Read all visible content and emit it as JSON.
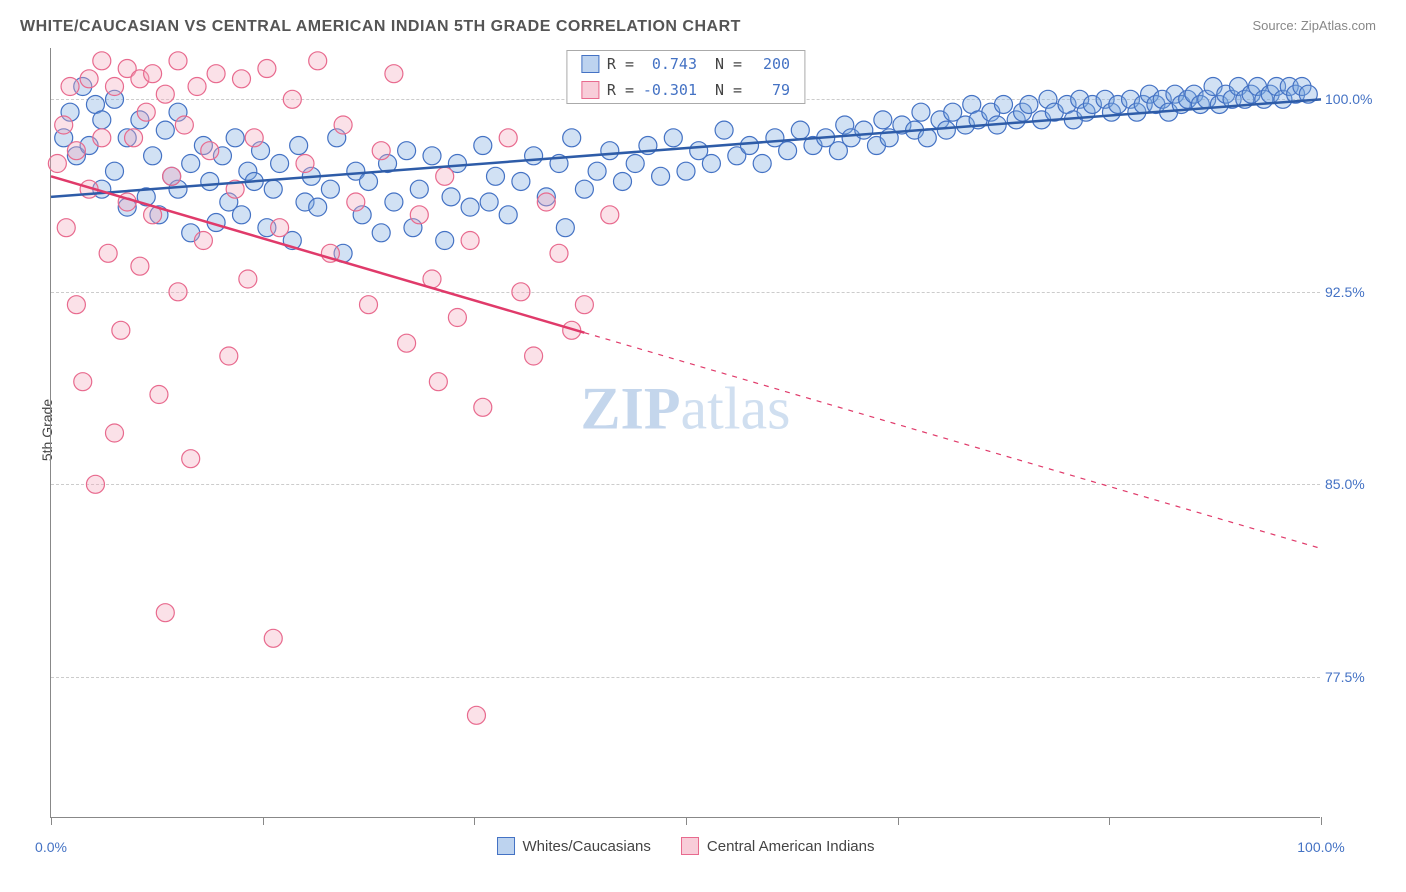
{
  "title": "WHITE/CAUCASIAN VS CENTRAL AMERICAN INDIAN 5TH GRADE CORRELATION CHART",
  "source": "Source: ZipAtlas.com",
  "ylabel": "5th Grade",
  "watermark_zip": "ZIP",
  "watermark_atlas": "atlas",
  "chart": {
    "type": "scatter",
    "background_color": "#ffffff",
    "grid_color": "#cccccc",
    "axis_color": "#888888",
    "xlim": [
      0,
      100
    ],
    "ylim": [
      72,
      102
    ],
    "xtick_positions": [
      0,
      16.67,
      33.33,
      50,
      66.67,
      83.33,
      100
    ],
    "xtick_labels": {
      "0": "0.0%",
      "100": "100.0%"
    },
    "ytick_positions": [
      77.5,
      85.0,
      92.5,
      100.0
    ],
    "ytick_labels": [
      "77.5%",
      "85.0%",
      "92.5%",
      "100.0%"
    ],
    "marker_radius": 9,
    "marker_opacity": 0.35,
    "line_width": 2.5,
    "series": [
      {
        "name": "Whites/Caucasians",
        "fill_color": "#7aa8e0",
        "stroke_color": "#4472c4",
        "line_color": "#2e5ca8",
        "R": "0.743",
        "N": "200",
        "trend": {
          "x1": 0,
          "y1": 96.2,
          "x2": 100,
          "y2": 100.0,
          "dash_from_x": null
        },
        "points": [
          [
            1,
            98.5
          ],
          [
            1.5,
            99.5
          ],
          [
            2,
            97.8
          ],
          [
            2.5,
            100.5
          ],
          [
            3,
            98.2
          ],
          [
            3.5,
            99.8
          ],
          [
            4,
            96.5
          ],
          [
            4,
            99.2
          ],
          [
            5,
            97.2
          ],
          [
            5,
            100.0
          ],
          [
            6,
            95.8
          ],
          [
            6,
            98.5
          ],
          [
            7,
            99.2
          ],
          [
            7.5,
            96.2
          ],
          [
            8,
            97.8
          ],
          [
            8.5,
            95.5
          ],
          [
            9,
            98.8
          ],
          [
            9.5,
            97.0
          ],
          [
            10,
            96.5
          ],
          [
            10,
            99.5
          ],
          [
            11,
            94.8
          ],
          [
            11,
            97.5
          ],
          [
            12,
            98.2
          ],
          [
            12.5,
            96.8
          ],
          [
            13,
            95.2
          ],
          [
            13.5,
            97.8
          ],
          [
            14,
            96.0
          ],
          [
            14.5,
            98.5
          ],
          [
            15,
            95.5
          ],
          [
            15.5,
            97.2
          ],
          [
            16,
            96.8
          ],
          [
            16.5,
            98.0
          ],
          [
            17,
            95.0
          ],
          [
            17.5,
            96.5
          ],
          [
            18,
            97.5
          ],
          [
            19,
            94.5
          ],
          [
            19.5,
            98.2
          ],
          [
            20,
            96.0
          ],
          [
            20.5,
            97.0
          ],
          [
            21,
            95.8
          ],
          [
            22,
            96.5
          ],
          [
            22.5,
            98.5
          ],
          [
            23,
            94.0
          ],
          [
            24,
            97.2
          ],
          [
            24.5,
            95.5
          ],
          [
            25,
            96.8
          ],
          [
            26,
            94.8
          ],
          [
            26.5,
            97.5
          ],
          [
            27,
            96.0
          ],
          [
            28,
            98.0
          ],
          [
            28.5,
            95.0
          ],
          [
            29,
            96.5
          ],
          [
            30,
            97.8
          ],
          [
            31,
            94.5
          ],
          [
            31.5,
            96.2
          ],
          [
            32,
            97.5
          ],
          [
            33,
            95.8
          ],
          [
            34,
            98.2
          ],
          [
            34.5,
            96.0
          ],
          [
            35,
            97.0
          ],
          [
            36,
            95.5
          ],
          [
            37,
            96.8
          ],
          [
            38,
            97.8
          ],
          [
            39,
            96.2
          ],
          [
            40,
            97.5
          ],
          [
            40.5,
            95.0
          ],
          [
            41,
            98.5
          ],
          [
            42,
            96.5
          ],
          [
            43,
            97.2
          ],
          [
            44,
            98.0
          ],
          [
            45,
            96.8
          ],
          [
            46,
            97.5
          ],
          [
            47,
            98.2
          ],
          [
            48,
            97.0
          ],
          [
            49,
            98.5
          ],
          [
            50,
            97.2
          ],
          [
            51,
            98.0
          ],
          [
            52,
            97.5
          ],
          [
            53,
            98.8
          ],
          [
            54,
            97.8
          ],
          [
            55,
            98.2
          ],
          [
            56,
            97.5
          ],
          [
            57,
            98.5
          ],
          [
            58,
            98.0
          ],
          [
            59,
            98.8
          ],
          [
            60,
            98.2
          ],
          [
            61,
            98.5
          ],
          [
            62,
            98.0
          ],
          [
            62.5,
            99.0
          ],
          [
            63,
            98.5
          ],
          [
            64,
            98.8
          ],
          [
            65,
            98.2
          ],
          [
            65.5,
            99.2
          ],
          [
            66,
            98.5
          ],
          [
            67,
            99.0
          ],
          [
            68,
            98.8
          ],
          [
            68.5,
            99.5
          ],
          [
            69,
            98.5
          ],
          [
            70,
            99.2
          ],
          [
            70.5,
            98.8
          ],
          [
            71,
            99.5
          ],
          [
            72,
            99.0
          ],
          [
            72.5,
            99.8
          ],
          [
            73,
            99.2
          ],
          [
            74,
            99.5
          ],
          [
            74.5,
            99.0
          ],
          [
            75,
            99.8
          ],
          [
            76,
            99.2
          ],
          [
            76.5,
            99.5
          ],
          [
            77,
            99.8
          ],
          [
            78,
            99.2
          ],
          [
            78.5,
            100.0
          ],
          [
            79,
            99.5
          ],
          [
            80,
            99.8
          ],
          [
            80.5,
            99.2
          ],
          [
            81,
            100.0
          ],
          [
            81.5,
            99.5
          ],
          [
            82,
            99.8
          ],
          [
            83,
            100.0
          ],
          [
            83.5,
            99.5
          ],
          [
            84,
            99.8
          ],
          [
            85,
            100.0
          ],
          [
            85.5,
            99.5
          ],
          [
            86,
            99.8
          ],
          [
            86.5,
            100.2
          ],
          [
            87,
            99.8
          ],
          [
            87.5,
            100.0
          ],
          [
            88,
            99.5
          ],
          [
            88.5,
            100.2
          ],
          [
            89,
            99.8
          ],
          [
            89.5,
            100.0
          ],
          [
            90,
            100.2
          ],
          [
            90.5,
            99.8
          ],
          [
            91,
            100.0
          ],
          [
            91.5,
            100.5
          ],
          [
            92,
            99.8
          ],
          [
            92.5,
            100.2
          ],
          [
            93,
            100.0
          ],
          [
            93.5,
            100.5
          ],
          [
            94,
            100.0
          ],
          [
            94.5,
            100.2
          ],
          [
            95,
            100.5
          ],
          [
            95.5,
            100.0
          ],
          [
            96,
            100.2
          ],
          [
            96.5,
            100.5
          ],
          [
            97,
            100.0
          ],
          [
            97.5,
            100.5
          ],
          [
            98,
            100.2
          ],
          [
            98.5,
            100.5
          ],
          [
            99,
            100.2
          ]
        ]
      },
      {
        "name": "Central American Indians",
        "fill_color": "#f4a8bd",
        "stroke_color": "#e86a8e",
        "line_color": "#e03a6a",
        "R": "-0.301",
        "N": "79",
        "trend": {
          "x1": 0,
          "y1": 97.0,
          "x2": 100,
          "y2": 82.5,
          "dash_from_x": 42
        },
        "points": [
          [
            0.5,
            97.5
          ],
          [
            1,
            99.0
          ],
          [
            1.2,
            95.0
          ],
          [
            1.5,
            100.5
          ],
          [
            2,
            98.0
          ],
          [
            2,
            92.0
          ],
          [
            2.5,
            89.0
          ],
          [
            3,
            100.8
          ],
          [
            3,
            96.5
          ],
          [
            3.5,
            85.0
          ],
          [
            4,
            101.5
          ],
          [
            4,
            98.5
          ],
          [
            4.5,
            94.0
          ],
          [
            5,
            100.5
          ],
          [
            5,
            87.0
          ],
          [
            5.5,
            91.0
          ],
          [
            6,
            101.2
          ],
          [
            6,
            96.0
          ],
          [
            6.5,
            98.5
          ],
          [
            7,
            100.8
          ],
          [
            7,
            93.5
          ],
          [
            7.5,
            99.5
          ],
          [
            8,
            101.0
          ],
          [
            8,
            95.5
          ],
          [
            8.5,
            88.5
          ],
          [
            9,
            100.2
          ],
          [
            9,
            80.0
          ],
          [
            9.5,
            97.0
          ],
          [
            10,
            101.5
          ],
          [
            10,
            92.5
          ],
          [
            10.5,
            99.0
          ],
          [
            11,
            86.0
          ],
          [
            11.5,
            100.5
          ],
          [
            12,
            94.5
          ],
          [
            12.5,
            98.0
          ],
          [
            13,
            101.0
          ],
          [
            14,
            90.0
          ],
          [
            14.5,
            96.5
          ],
          [
            15,
            100.8
          ],
          [
            15.5,
            93.0
          ],
          [
            16,
            98.5
          ],
          [
            17,
            101.2
          ],
          [
            17.5,
            79.0
          ],
          [
            18,
            95.0
          ],
          [
            19,
            100.0
          ],
          [
            20,
            97.5
          ],
          [
            21,
            101.5
          ],
          [
            22,
            94.0
          ],
          [
            23,
            99.0
          ],
          [
            24,
            96.0
          ],
          [
            25,
            92.0
          ],
          [
            26,
            98.0
          ],
          [
            27,
            101.0
          ],
          [
            28,
            90.5
          ],
          [
            29,
            95.5
          ],
          [
            30,
            93.0
          ],
          [
            30.5,
            89.0
          ],
          [
            31,
            97.0
          ],
          [
            32,
            91.5
          ],
          [
            33,
            94.5
          ],
          [
            33.5,
            76.0
          ],
          [
            34,
            88.0
          ],
          [
            36,
            98.5
          ],
          [
            37,
            92.5
          ],
          [
            38,
            90.0
          ],
          [
            39,
            96.0
          ],
          [
            40,
            94.0
          ],
          [
            41,
            91.0
          ],
          [
            42,
            92.0
          ],
          [
            44,
            95.5
          ]
        ]
      }
    ]
  },
  "legend_top": [
    {
      "swatch_fill": "#bdd3ef",
      "swatch_stroke": "#4472c4",
      "R_label": "R =",
      "R_val": "0.743",
      "N_label": "N =",
      "N_val": "200"
    },
    {
      "swatch_fill": "#f8cdd9",
      "swatch_stroke": "#e86a8e",
      "R_label": "R =",
      "R_val": "-0.301",
      "N_label": "N =",
      "N_val": "79"
    }
  ],
  "legend_bottom": [
    {
      "swatch_fill": "#bdd3ef",
      "swatch_stroke": "#4472c4",
      "label": "Whites/Caucasians"
    },
    {
      "swatch_fill": "#f8cdd9",
      "swatch_stroke": "#e86a8e",
      "label": "Central American Indians"
    }
  ]
}
